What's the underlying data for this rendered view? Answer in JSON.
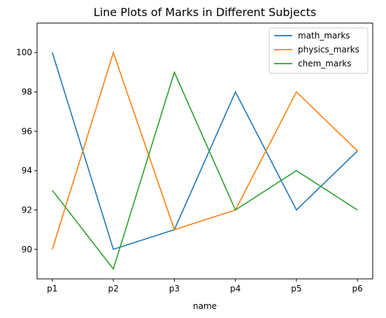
{
  "chart_data": {
    "type": "line",
    "title": "Line Plots of Marks in Different Subjects",
    "xlabel": "name",
    "ylabel": "",
    "categories": [
      "p1",
      "p2",
      "p3",
      "p4",
      "p5",
      "p6"
    ],
    "ylim": [
      88.5,
      101.5
    ],
    "yticks": [
      90,
      92,
      94,
      96,
      98,
      100
    ],
    "grid": false,
    "legend_position": "top-right",
    "series": [
      {
        "name": "math_marks",
        "color": "#1f77b4",
        "values": [
          100,
          90,
          91,
          98,
          92,
          95
        ]
      },
      {
        "name": "physics_marks",
        "color": "#ff7f0e",
        "values": [
          90,
          100,
          91,
          92,
          98,
          95
        ]
      },
      {
        "name": "chem_marks",
        "color": "#2ca02c",
        "values": [
          93,
          89,
          99,
          92,
          94,
          92
        ]
      }
    ]
  }
}
